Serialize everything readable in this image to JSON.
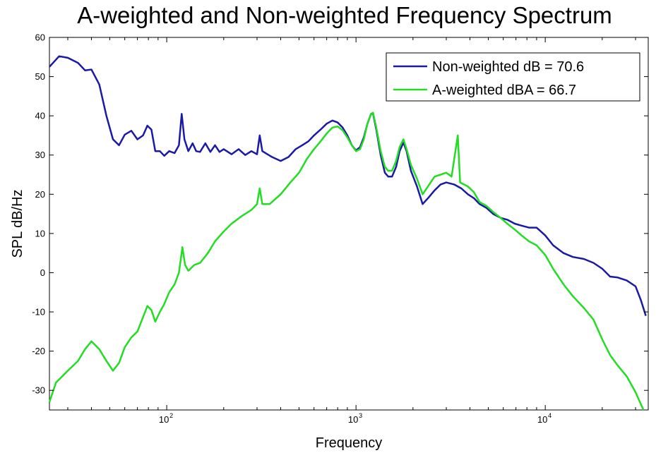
{
  "chart_data": {
    "type": "line",
    "title": "A-weighted and Non-weighted Frequency Spectrum",
    "xlabel": "Frequency",
    "ylabel": "SPL dB/Hz",
    "xscale": "log",
    "xlim": [
      24,
      35000
    ],
    "ylim": [
      -35,
      60
    ],
    "x_ticks": [
      {
        "value": 100,
        "base": "10",
        "exp": "2"
      },
      {
        "value": 1000,
        "base": "10",
        "exp": "3"
      },
      {
        "value": 10000,
        "base": "10",
        "exp": "4"
      }
    ],
    "y_ticks": [
      -30,
      -20,
      -10,
      0,
      10,
      20,
      30,
      40,
      50,
      60
    ],
    "grid": false,
    "legend_position": "top-right",
    "series": [
      {
        "name": "Non-weighted dB = 70.6",
        "color": "#1a1aa6",
        "points": [
          [
            24,
            52.5
          ],
          [
            27,
            55.2
          ],
          [
            30,
            54.8
          ],
          [
            34,
            53.5
          ],
          [
            37,
            51.6
          ],
          [
            40,
            51.8
          ],
          [
            44,
            48
          ],
          [
            48,
            40
          ],
          [
            52,
            34
          ],
          [
            56,
            32.5
          ],
          [
            60,
            35.2
          ],
          [
            65,
            36.2
          ],
          [
            70,
            34
          ],
          [
            75,
            35
          ],
          [
            79,
            37.5
          ],
          [
            83,
            36.5
          ],
          [
            87,
            31
          ],
          [
            92,
            31
          ],
          [
            97,
            29.8
          ],
          [
            103,
            31
          ],
          [
            110,
            30.5
          ],
          [
            116,
            32.5
          ],
          [
            120,
            40.5
          ],
          [
            124,
            34
          ],
          [
            130,
            31
          ],
          [
            137,
            33
          ],
          [
            143,
            31
          ],
          [
            150,
            30.8
          ],
          [
            160,
            33
          ],
          [
            170,
            30.8
          ],
          [
            180,
            32.5
          ],
          [
            190,
            30.8
          ],
          [
            200,
            31.5
          ],
          [
            220,
            30.2
          ],
          [
            240,
            31.5
          ],
          [
            260,
            30
          ],
          [
            280,
            31
          ],
          [
            300,
            30.2
          ],
          [
            310,
            35
          ],
          [
            320,
            31
          ],
          [
            340,
            30.2
          ],
          [
            360,
            29.5
          ],
          [
            400,
            28.5
          ],
          [
            440,
            29.5
          ],
          [
            480,
            31.5
          ],
          [
            520,
            32.5
          ],
          [
            560,
            33.5
          ],
          [
            600,
            35
          ],
          [
            650,
            36.5
          ],
          [
            700,
            38
          ],
          [
            750,
            38.8
          ],
          [
            800,
            38.3
          ],
          [
            850,
            37
          ],
          [
            900,
            35
          ],
          [
            950,
            32.5
          ],
          [
            1000,
            31.2
          ],
          [
            1050,
            32
          ],
          [
            1100,
            34.5
          ],
          [
            1150,
            38
          ],
          [
            1200,
            40.5
          ],
          [
            1230,
            40.6
          ],
          [
            1280,
            36.5
          ],
          [
            1350,
            30
          ],
          [
            1420,
            25.5
          ],
          [
            1480,
            24.5
          ],
          [
            1550,
            24.5
          ],
          [
            1630,
            27
          ],
          [
            1700,
            31
          ],
          [
            1780,
            33.2
          ],
          [
            1850,
            31
          ],
          [
            1950,
            26
          ],
          [
            2100,
            22
          ],
          [
            2250,
            17.5
          ],
          [
            2400,
            19
          ],
          [
            2600,
            21
          ],
          [
            2800,
            22.5
          ],
          [
            3000,
            23
          ],
          [
            3300,
            22.5
          ],
          [
            3600,
            21.5
          ],
          [
            3900,
            20
          ],
          [
            4200,
            19
          ],
          [
            4500,
            17.5
          ],
          [
            4900,
            16.5
          ],
          [
            5300,
            15
          ],
          [
            5800,
            14
          ],
          [
            6300,
            13.5
          ],
          [
            6900,
            12.5
          ],
          [
            7500,
            12
          ],
          [
            8200,
            11.5
          ],
          [
            9000,
            11.5
          ],
          [
            10000,
            9.5
          ],
          [
            11000,
            7
          ],
          [
            12500,
            5
          ],
          [
            14000,
            4
          ],
          [
            16000,
            3.5
          ],
          [
            18000,
            2.5
          ],
          [
            20000,
            1
          ],
          [
            22000,
            -1
          ],
          [
            24000,
            -1.2
          ],
          [
            27000,
            -2
          ],
          [
            30000,
            -3.5
          ],
          [
            32000,
            -7
          ],
          [
            34000,
            -11
          ]
        ]
      },
      {
        "name": "A-weighted dBA = 66.7",
        "color": "#22dd22",
        "points": [
          [
            24,
            -33
          ],
          [
            26,
            -28
          ],
          [
            30,
            -25
          ],
          [
            34,
            -22.5
          ],
          [
            37,
            -19.5
          ],
          [
            40,
            -17.5
          ],
          [
            44,
            -19.5
          ],
          [
            48,
            -22.5
          ],
          [
            52,
            -25
          ],
          [
            56,
            -23
          ],
          [
            60,
            -19
          ],
          [
            65,
            -16.5
          ],
          [
            70,
            -15
          ],
          [
            74,
            -12
          ],
          [
            79,
            -8.5
          ],
          [
            83,
            -9.5
          ],
          [
            87,
            -12.5
          ],
          [
            92,
            -10
          ],
          [
            97,
            -8
          ],
          [
            103,
            -5
          ],
          [
            110,
            -3
          ],
          [
            116,
            0
          ],
          [
            121,
            6.5
          ],
          [
            125,
            2
          ],
          [
            130,
            0.5
          ],
          [
            140,
            2
          ],
          [
            150,
            2.5
          ],
          [
            165,
            5
          ],
          [
            180,
            8
          ],
          [
            200,
            10.5
          ],
          [
            220,
            12.5
          ],
          [
            250,
            14.5
          ],
          [
            280,
            16
          ],
          [
            300,
            17.5
          ],
          [
            310,
            21.5
          ],
          [
            320,
            17.5
          ],
          [
            350,
            17.5
          ],
          [
            400,
            20
          ],
          [
            450,
            23
          ],
          [
            500,
            25.5
          ],
          [
            550,
            29
          ],
          [
            600,
            31.5
          ],
          [
            650,
            33.5
          ],
          [
            700,
            35.5
          ],
          [
            750,
            37
          ],
          [
            800,
            37.3
          ],
          [
            850,
            36.3
          ],
          [
            900,
            34.5
          ],
          [
            950,
            32.5
          ],
          [
            1000,
            31
          ],
          [
            1050,
            31.5
          ],
          [
            1100,
            34
          ],
          [
            1150,
            38
          ],
          [
            1200,
            40.5
          ],
          [
            1230,
            40.8
          ],
          [
            1280,
            37
          ],
          [
            1350,
            31
          ],
          [
            1420,
            27
          ],
          [
            1480,
            26
          ],
          [
            1550,
            26
          ],
          [
            1630,
            28.5
          ],
          [
            1700,
            32
          ],
          [
            1780,
            34
          ],
          [
            1850,
            31.5
          ],
          [
            1950,
            27.5
          ],
          [
            2100,
            24
          ],
          [
            2250,
            20
          ],
          [
            2400,
            22
          ],
          [
            2600,
            24.5
          ],
          [
            2800,
            25
          ],
          [
            3000,
            25.5
          ],
          [
            3200,
            24.5
          ],
          [
            3450,
            35
          ],
          [
            3550,
            23
          ],
          [
            3900,
            22
          ],
          [
            4200,
            20.5
          ],
          [
            4500,
            18
          ],
          [
            4900,
            17
          ],
          [
            5300,
            15.5
          ],
          [
            5800,
            14
          ],
          [
            6300,
            12.5
          ],
          [
            6900,
            11
          ],
          [
            7500,
            9.5
          ],
          [
            8200,
            8
          ],
          [
            9000,
            7
          ],
          [
            10000,
            4.5
          ],
          [
            11000,
            1
          ],
          [
            12500,
            -3
          ],
          [
            14000,
            -6
          ],
          [
            16000,
            -9
          ],
          [
            18000,
            -12
          ],
          [
            20000,
            -17
          ],
          [
            22000,
            -21
          ],
          [
            24000,
            -23.5
          ],
          [
            27000,
            -26.5
          ],
          [
            30000,
            -30.5
          ],
          [
            33000,
            -35
          ]
        ]
      }
    ]
  }
}
